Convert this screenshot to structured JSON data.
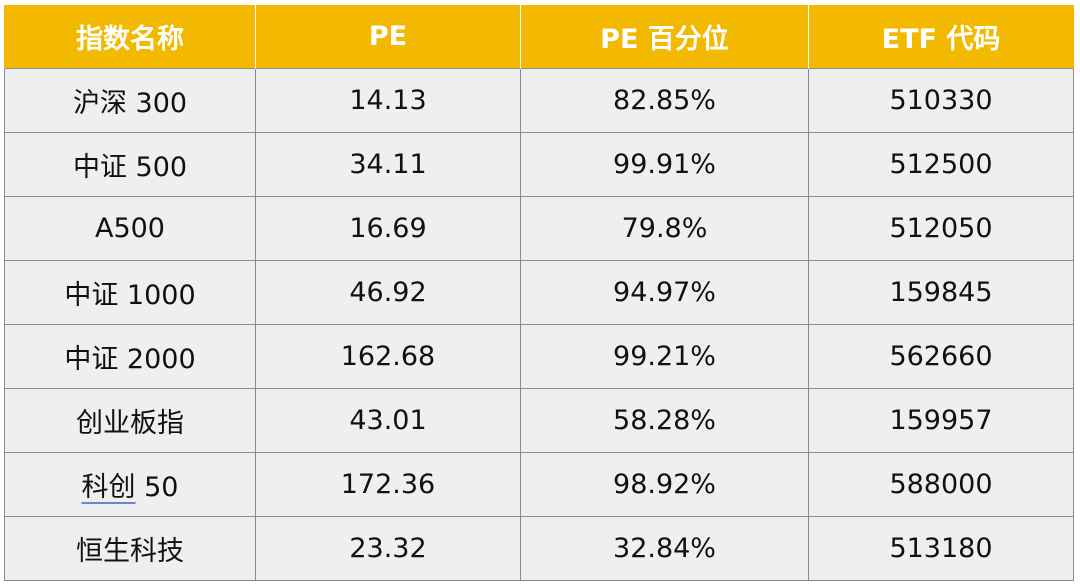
{
  "table": {
    "headers": [
      "指数名称",
      "PE",
      "PE 百分位",
      "ETF 代码"
    ],
    "rows": [
      {
        "name": "沪深 300",
        "pe": "14.13",
        "pct": "82.85%",
        "etf": "510330"
      },
      {
        "name": "中证 500",
        "pe": "34.11",
        "pct": "99.91%",
        "etf": "512500"
      },
      {
        "name": "A500",
        "pe": "16.69",
        "pct": "79.8%",
        "etf": "512050"
      },
      {
        "name": "中证 1000",
        "pe": "46.92",
        "pct": "94.97%",
        "etf": "159845"
      },
      {
        "name": "中证 2000",
        "pe": "162.68",
        "pct": "99.21%",
        "etf": "562660"
      },
      {
        "name": "创业板指",
        "pe": "43.01",
        "pct": "58.28%",
        "etf": "159957"
      },
      {
        "name": "科创 50",
        "name_part1": "科创",
        "name_part2": " 50",
        "pe": "172.36",
        "pct": "98.92%",
        "etf": "588000"
      },
      {
        "name": "恒生科技",
        "pe": "23.32",
        "pct": "32.84%",
        "etf": "513180"
      }
    ]
  },
  "colors": {
    "header_bg": "#f2b900",
    "header_text": "#ffffff",
    "cell_bg": "#efefef",
    "border": "#8a8a8a"
  }
}
